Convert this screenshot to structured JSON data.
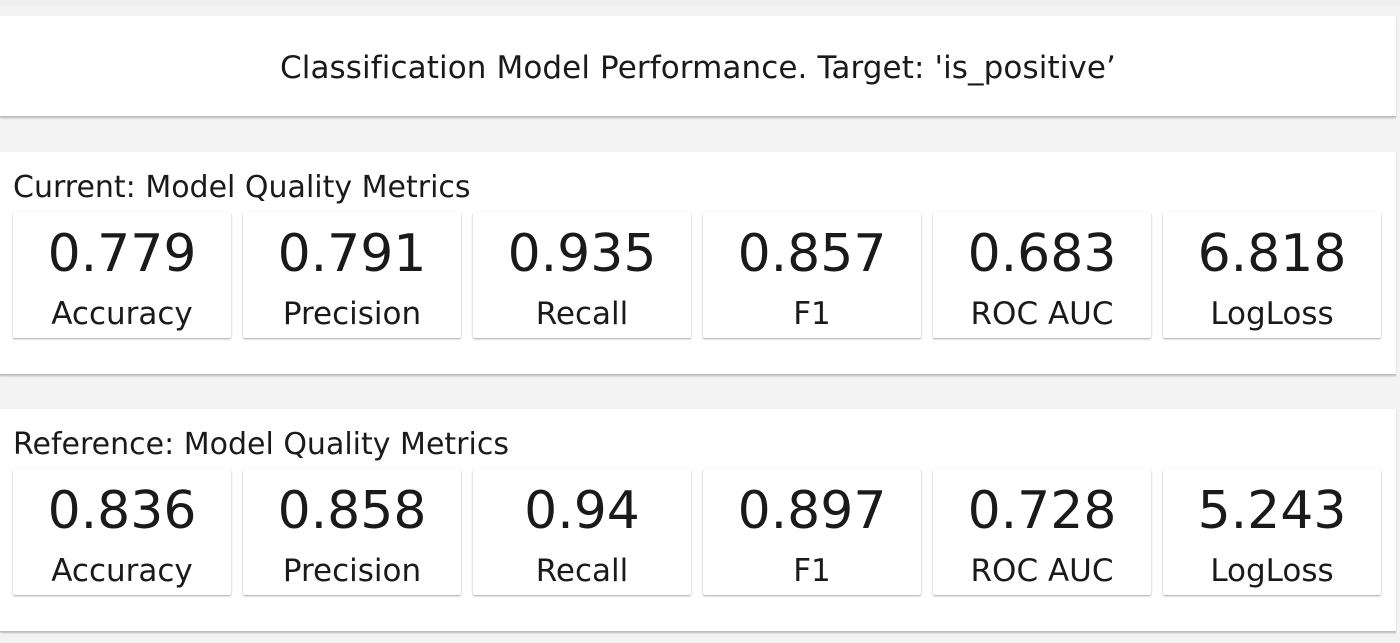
{
  "header": {
    "title": "Classification Model Performance. Target: 'is_positive’"
  },
  "current": {
    "heading": "Current: Model Quality Metrics",
    "metrics": [
      {
        "value": "0.779",
        "label": "Accuracy"
      },
      {
        "value": "0.791",
        "label": "Precision"
      },
      {
        "value": "0.935",
        "label": "Recall"
      },
      {
        "value": "0.857",
        "label": "F1"
      },
      {
        "value": "0.683",
        "label": "ROC AUC"
      },
      {
        "value": "6.818",
        "label": "LogLoss"
      }
    ]
  },
  "reference": {
    "heading": "Reference: Model Quality Metrics",
    "metrics": [
      {
        "value": "0.836",
        "label": "Accuracy"
      },
      {
        "value": "0.858",
        "label": "Precision"
      },
      {
        "value": "0.94",
        "label": "Recall"
      },
      {
        "value": "0.897",
        "label": "F1"
      },
      {
        "value": "0.728",
        "label": "ROC AUC"
      },
      {
        "value": "5.243",
        "label": "LogLoss"
      }
    ]
  }
}
